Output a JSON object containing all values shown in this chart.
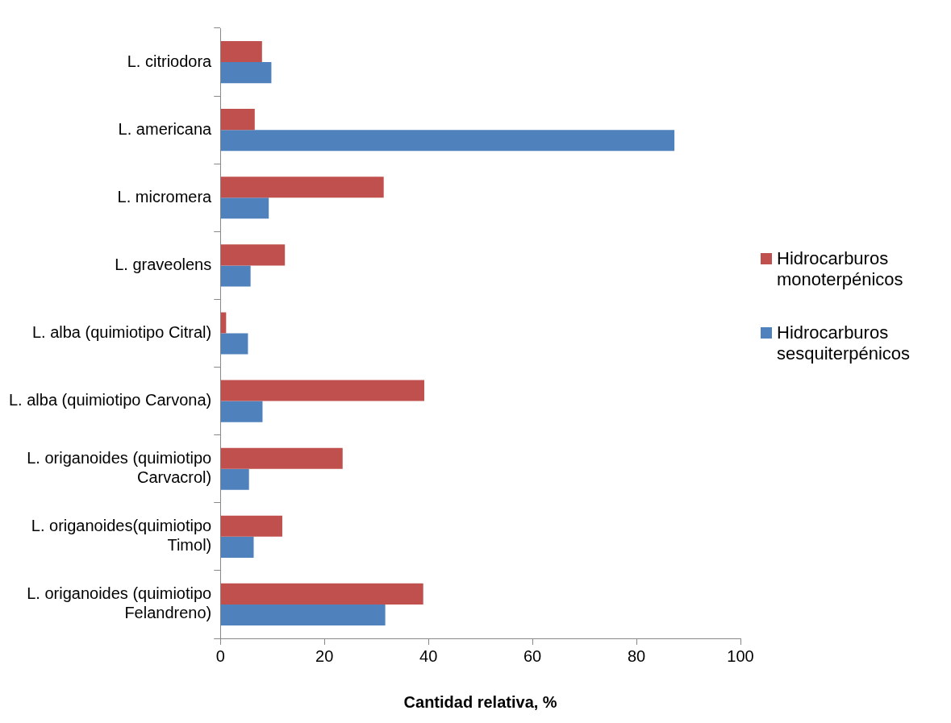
{
  "chart_data": {
    "type": "bar",
    "orientation": "horizontal",
    "xlabel": "Cantidad relativa, %",
    "categories": [
      "L. citriodora",
      "L. americana",
      "L. micromera",
      "L. graveolens",
      "L. alba (quimiotipo Citral)",
      "L. alba (quimiotipo Carvona)",
      "L. origanoides (quimiotipo Carvacrol)",
      "L. origanoides(quimiotipo Timol)",
      "L. origanoides (quimiotipo Felandreno)"
    ],
    "series": [
      {
        "name": "Hidrocarburos monoterpénicos",
        "color": "#c0504d",
        "values": [
          8,
          6.6,
          31.4,
          12.4,
          1.1,
          39.2,
          23.5,
          11.9,
          39
        ]
      },
      {
        "name": "Hidrocarburos sesquiterpénicos",
        "color": "#4f81bd",
        "values": [
          9.8,
          87.3,
          9.3,
          5.8,
          5.3,
          8.1,
          5.5,
          6.4,
          31.7
        ]
      }
    ],
    "xlim": [
      0,
      100
    ],
    "xticks": [
      0,
      20,
      40,
      60,
      80,
      100
    ],
    "grid": false,
    "legend": "right"
  }
}
